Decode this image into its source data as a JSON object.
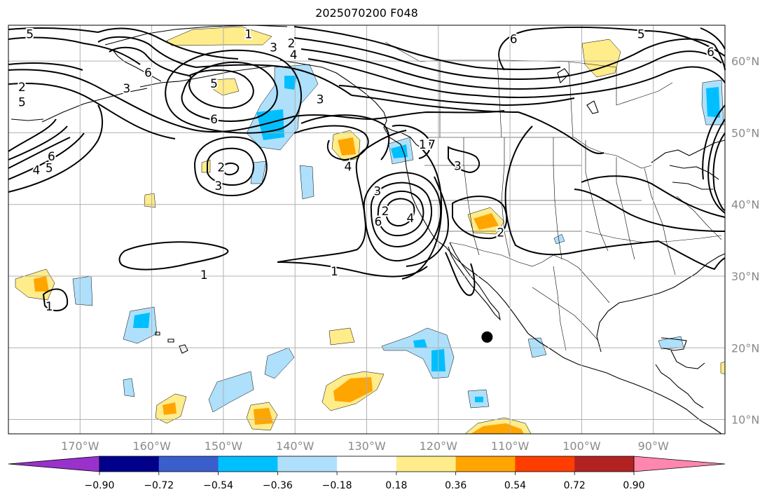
{
  "title": "2025070200 F048",
  "map": {
    "lon_range": [
      -180,
      -80
    ],
    "lat_range": [
      8,
      65
    ],
    "lon_ticks": [
      {
        "lon": -170,
        "label": "170°W"
      },
      {
        "lon": -160,
        "label": "160°W"
      },
      {
        "lon": -150,
        "label": "150°W"
      },
      {
        "lon": -140,
        "label": "140°W"
      },
      {
        "lon": -130,
        "label": "130°W"
      },
      {
        "lon": -120,
        "label": "120°W"
      },
      {
        "lon": -110,
        "label": "110°W"
      },
      {
        "lon": -100,
        "label": "100°W"
      },
      {
        "lon": -90,
        "label": "90°W"
      }
    ],
    "lat_ticks": [
      {
        "lat": 10,
        "label": "10°N"
      },
      {
        "lat": 20,
        "label": "20°N"
      },
      {
        "lat": 30,
        "label": "30°N"
      },
      {
        "lat": 40,
        "label": "40°N"
      },
      {
        "lat": 50,
        "label": "50°N"
      },
      {
        "lat": 60,
        "label": "60°N"
      }
    ],
    "marker": {
      "name": "storm-center-dot",
      "lon": -113.2,
      "lat": 21.5
    },
    "contour_labels": [
      {
        "text": "5",
        "lon": -177,
        "lat": 63.8
      },
      {
        "text": "1",
        "lon": -146.5,
        "lat": 63.8
      },
      {
        "text": "3",
        "lon": -143,
        "lat": 61.9
      },
      {
        "text": "2",
        "lon": -140.5,
        "lat": 62.5
      },
      {
        "text": "4",
        "lon": -140.2,
        "lat": 60.9
      },
      {
        "text": "6",
        "lon": -160.5,
        "lat": 58.4
      },
      {
        "text": "3",
        "lon": -163.5,
        "lat": 56.2
      },
      {
        "text": "2",
        "lon": -178.1,
        "lat": 56.4
      },
      {
        "text": "5",
        "lon": -178.1,
        "lat": 54.3
      },
      {
        "text": "5",
        "lon": -151.3,
        "lat": 56.9
      },
      {
        "text": "3",
        "lon": -136.5,
        "lat": 54.7
      },
      {
        "text": "6",
        "lon": -151.3,
        "lat": 51.9
      },
      {
        "text": "6",
        "lon": -174,
        "lat": 46.7
      },
      {
        "text": "4",
        "lon": -176.1,
        "lat": 44.8
      },
      {
        "text": "5",
        "lon": -174.3,
        "lat": 45.1
      },
      {
        "text": "2",
        "lon": -150.3,
        "lat": 45.2
      },
      {
        "text": "3",
        "lon": -150.7,
        "lat": 42.6
      },
      {
        "text": "4",
        "lon": -132.6,
        "lat": 45.3
      },
      {
        "text": "1",
        "lon": -122.2,
        "lat": 48.4
      },
      {
        "text": "7",
        "lon": -120.9,
        "lat": 48.4
      },
      {
        "text": "3",
        "lon": -128.5,
        "lat": 41.9
      },
      {
        "text": "3",
        "lon": -117.3,
        "lat": 45.4
      },
      {
        "text": "2",
        "lon": -127.4,
        "lat": 39.1
      },
      {
        "text": "6",
        "lon": -128.4,
        "lat": 37.6
      },
      {
        "text": "4",
        "lon": -123.9,
        "lat": 38.1
      },
      {
        "text": "2",
        "lon": -111.3,
        "lat": 36.1
      },
      {
        "text": "1",
        "lon": -152.7,
        "lat": 30.2
      },
      {
        "text": "1",
        "lon": -134.5,
        "lat": 30.7
      },
      {
        "text": "1",
        "lon": -174.3,
        "lat": 25.8
      },
      {
        "text": "6",
        "lon": -109.5,
        "lat": 63.1
      },
      {
        "text": "5",
        "lon": -91.7,
        "lat": 63.8
      },
      {
        "text": "6",
        "lon": -82,
        "lat": 61.3
      }
    ]
  },
  "colorbar": {
    "levels": [
      -0.9,
      -0.72,
      -0.54,
      -0.36,
      -0.18,
      0.18,
      0.36,
      0.54,
      0.72,
      0.9
    ],
    "tick_labels": [
      "−0.90",
      "−0.72",
      "−0.54",
      "−0.36",
      "−0.18",
      "0.18",
      "0.36",
      "0.54",
      "0.72",
      "0.90"
    ],
    "colors": [
      "#9932cc",
      "#00008b",
      "#3a5fcd",
      "#00bfff",
      "#aee0fb",
      "#ffffff",
      "#ffec8b",
      "#ffa500",
      "#ff3d00",
      "#b22222",
      "#ff87ae"
    ]
  },
  "colors": {
    "light_blue": "#aee0fb",
    "blue": "#00bfff",
    "yellow": "#ffec8b",
    "orange": "#ffa500",
    "land_line": "#000000",
    "grid": "#b0b0b0"
  }
}
